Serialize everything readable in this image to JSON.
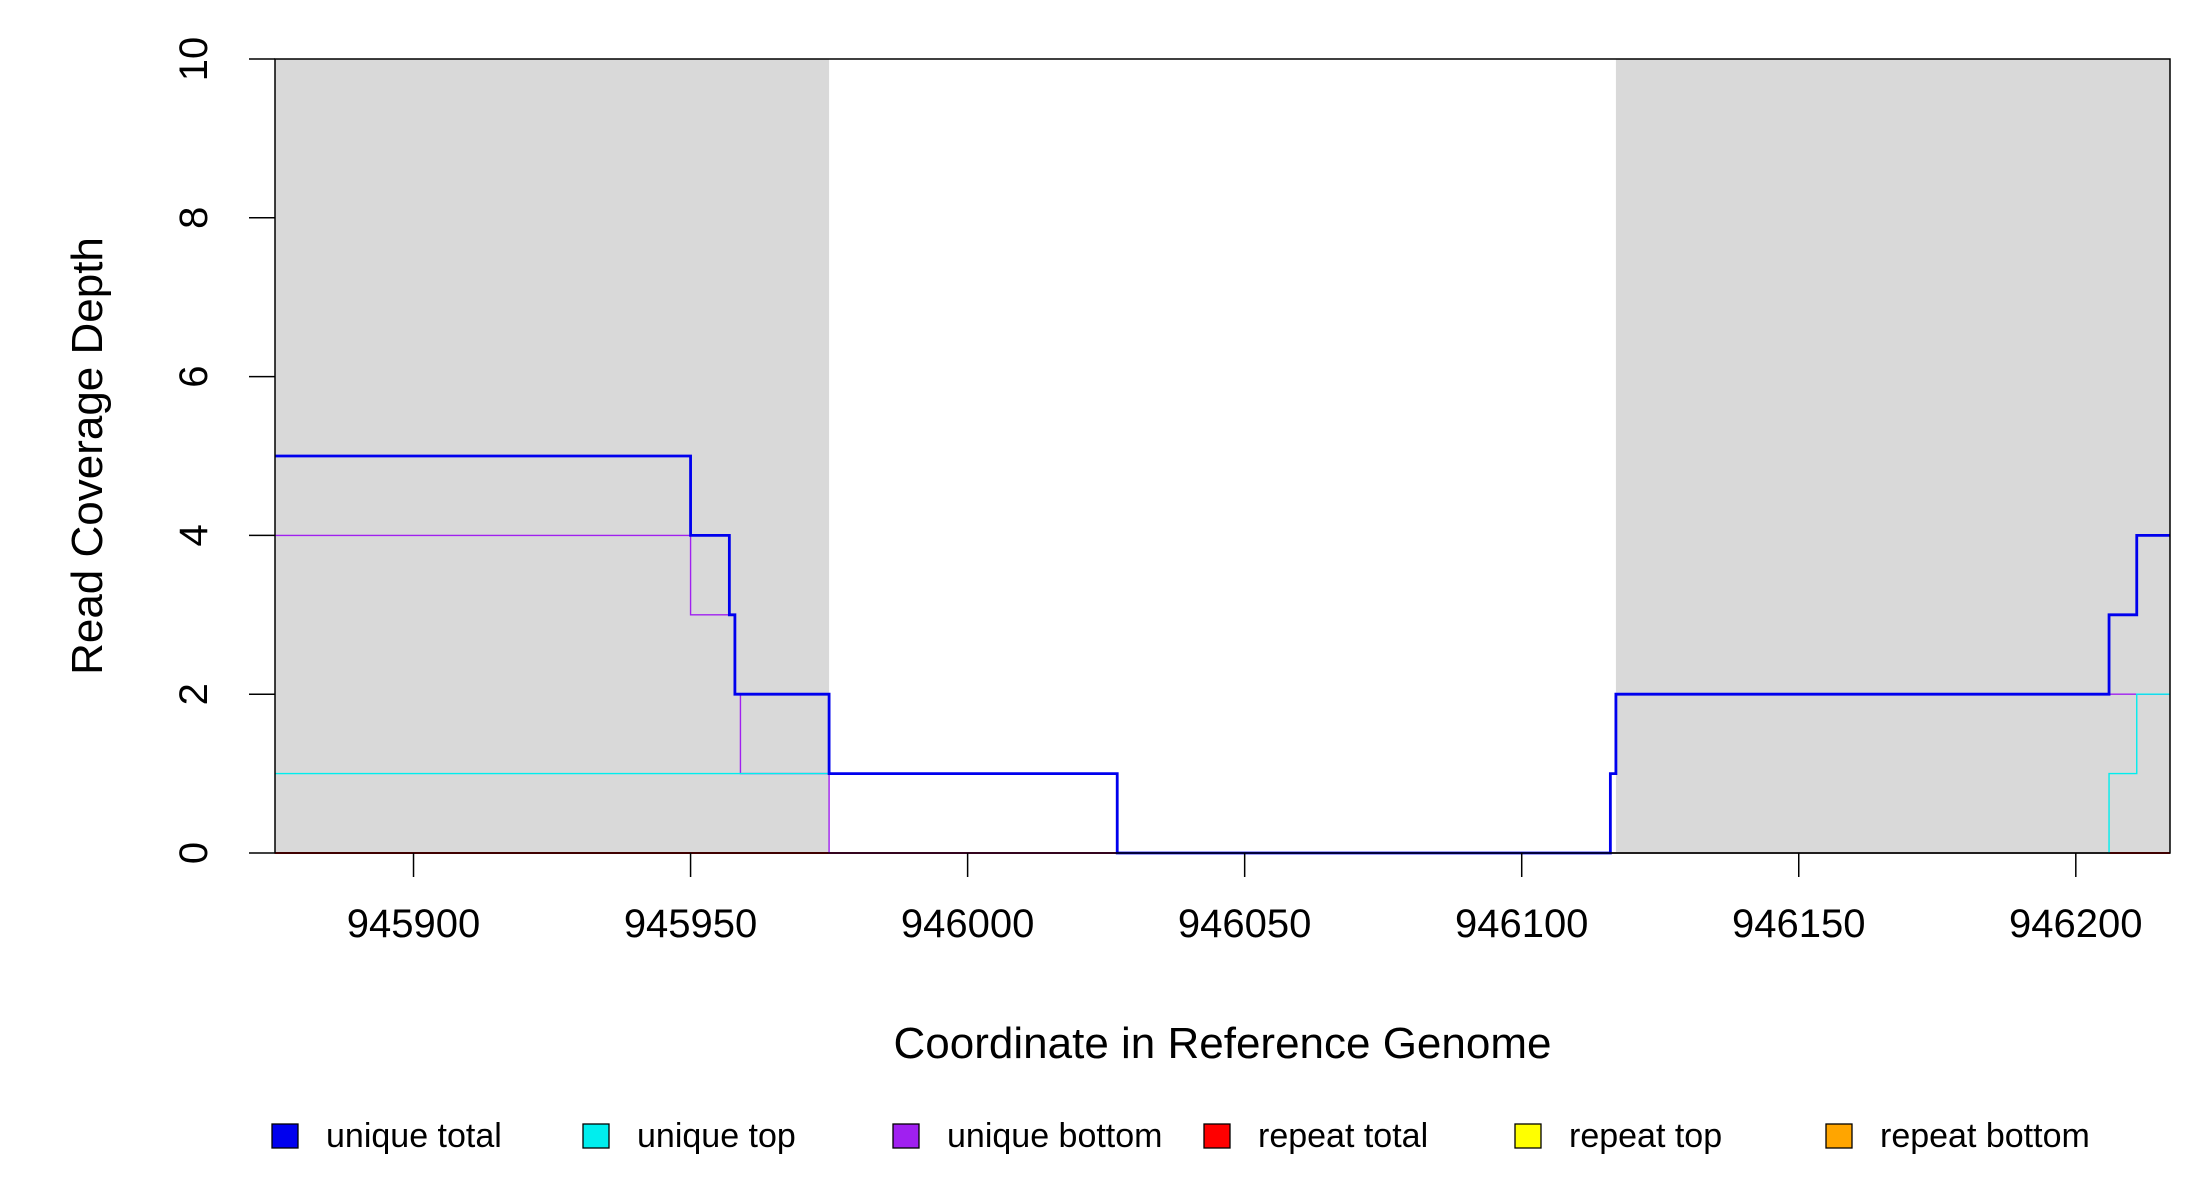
{
  "chart_data": {
    "type": "line",
    "step": true,
    "xlabel": "Coordinate in Reference Genome",
    "ylabel": "Read Coverage Depth",
    "xlim": [
      945875,
      946217
    ],
    "ylim": [
      0,
      10
    ],
    "x_ticks": [
      945900,
      945950,
      946000,
      946050,
      946100,
      946150,
      946200
    ],
    "y_ticks": [
      0,
      2,
      4,
      6,
      8,
      10
    ],
    "grid": false,
    "shaded_regions": [
      {
        "x": [
          945875,
          945975
        ],
        "color": "#d9d9d9"
      },
      {
        "x": [
          946117,
          946217
        ],
        "color": "#d9d9d9"
      }
    ],
    "legend_position": "bottom",
    "series": [
      {
        "name": "unique total",
        "color": "#0000ee",
        "x": [
          945875,
          945950,
          945957,
          945958,
          945975,
          946027,
          946116,
          946117,
          946206,
          946211,
          946217
        ],
        "y": [
          5,
          4,
          3,
          2,
          1,
          0,
          1,
          2,
          3,
          4,
          4
        ]
      },
      {
        "name": "unique top",
        "color": "#00eeee",
        "x": [
          945875,
          945975,
          946027,
          946206,
          946211,
          946217
        ],
        "y": [
          1,
          1,
          0,
          1,
          2,
          2
        ]
      },
      {
        "name": "unique bottom",
        "color": "#a020f0",
        "x": [
          945875,
          945950,
          945958,
          945959,
          945975,
          946116,
          946117,
          946217
        ],
        "y": [
          4,
          3,
          2,
          1,
          0,
          1,
          2,
          2
        ]
      },
      {
        "name": "repeat total",
        "color": "#ff0000",
        "x": [
          945875,
          946217
        ],
        "y": [
          0,
          0
        ]
      },
      {
        "name": "repeat top",
        "color": "#ffff00",
        "x": [
          945875,
          946217
        ],
        "y": [
          0,
          0
        ]
      },
      {
        "name": "repeat bottom",
        "color": "#ffa500",
        "x": [
          945875,
          946217
        ],
        "y": [
          0,
          0
        ]
      }
    ]
  }
}
